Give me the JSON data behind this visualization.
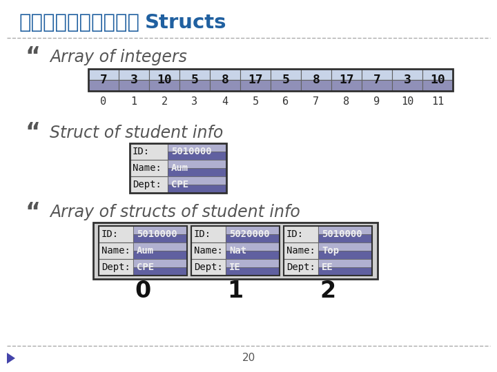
{
  "title_thai": "อาร์เรยของ",
  "title_eng": "Structs",
  "title_color": "#2060a0",
  "bg_color": "#ffffff",
  "bullet": "“",
  "section1_label": "Array of integers",
  "array_values": [
    "7",
    "3",
    "10",
    "5",
    "8",
    "17",
    "5",
    "8",
    "17",
    "7",
    "3",
    "10"
  ],
  "array_indices": [
    "0",
    "1",
    "2",
    "3",
    "4",
    "5",
    "6",
    "7",
    "8",
    "9",
    "10",
    "11"
  ],
  "section2_label": "Struct of student info",
  "struct_fields": [
    "ID:",
    "Name:",
    "Dept:"
  ],
  "struct_values": [
    "5010000",
    "Aum",
    "CPE"
  ],
  "section3_label": "Array of structs of student info",
  "structs_array": [
    {
      "id": "5010000",
      "name": "Aum",
      "dept": "CPE",
      "idx": "0"
    },
    {
      "id": "5020000",
      "name": "Nat",
      "dept": "IE",
      "idx": "1"
    },
    {
      "id": "5010000",
      "name": "Top",
      "dept": "EE",
      "idx": "2"
    }
  ],
  "page_num": "20",
  "border_color": "#404040"
}
